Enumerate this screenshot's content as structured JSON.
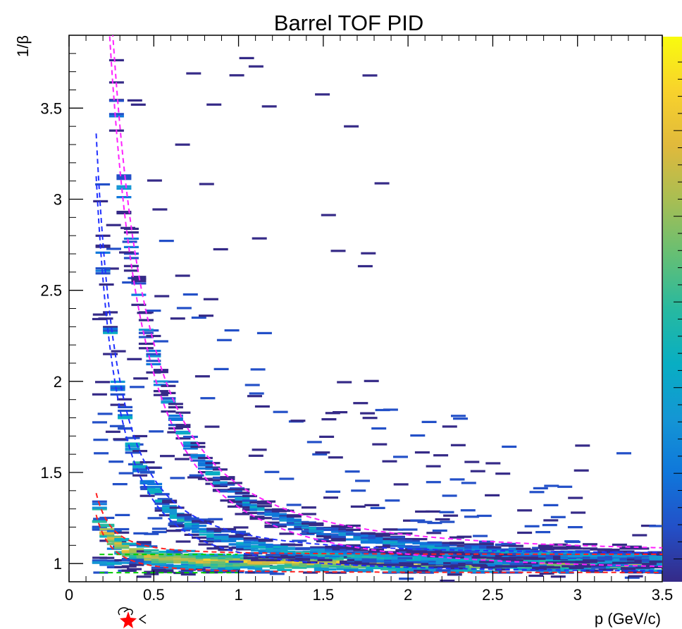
{
  "chart_data": {
    "type": "heatmap",
    "title": "Barrel TOF PID",
    "xlabel": "p (GeV/c)",
    "ylabel": "1/β",
    "xlim": [
      0,
      3.5
    ],
    "ylim": [
      0.9,
      3.9
    ],
    "xticks": [
      {
        "value": 0,
        "label": "0"
      },
      {
        "value": 0.5,
        "label": "0.5"
      },
      {
        "value": 1,
        "label": "1"
      },
      {
        "value": 1.5,
        "label": "1.5"
      },
      {
        "value": 2,
        "label": "2"
      },
      {
        "value": 2.5,
        "label": "2.5"
      },
      {
        "value": 3,
        "label": "3"
      },
      {
        "value": 3.5,
        "label": "3.5"
      }
    ],
    "yticks": [
      {
        "value": 1,
        "label": "1"
      },
      {
        "value": 1.5,
        "label": "1.5"
      },
      {
        "value": 2,
        "label": "2"
      },
      {
        "value": 2.5,
        "label": "2.5"
      },
      {
        "value": 3,
        "label": "3"
      },
      {
        "value": 3.5,
        "label": "3.5"
      }
    ],
    "bands": [
      {
        "particle_mass": 0.000511,
        "line_color": "#00cc00",
        "pmax": 1.0
      },
      {
        "particle_mass": 0.13957,
        "line_color": "#ff2020",
        "pmax": 3.5
      },
      {
        "particle_mass": 0.49368,
        "line_color": "#2030ff",
        "pmax": 3.5
      },
      {
        "particle_mass": 0.93827,
        "line_color": "#ff20ff",
        "pmax": 3.5
      }
    ],
    "colormap": [
      "#352a87",
      "#2350c8",
      "#0f77db",
      "#1496d4",
      "#08aec3",
      "#27b9a0",
      "#65bf74",
      "#a8be53",
      "#e0b93c",
      "#f8d22c",
      "#f9fb0e"
    ],
    "grid": false,
    "legend": "none",
    "colorbar": "right"
  }
}
